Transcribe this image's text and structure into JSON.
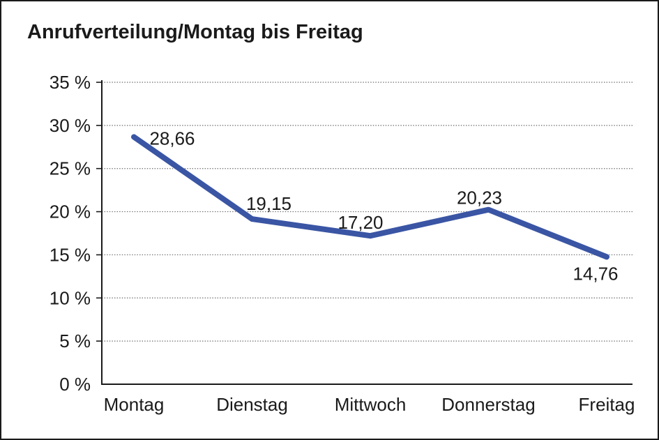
{
  "window": {
    "background": "#ffffff",
    "border_color": "#1a1a1a"
  },
  "chart_data": {
    "type": "line",
    "title": "Anrufverteilung/Montag bis Freitag",
    "categories": [
      "Montag",
      "Dienstag",
      "Mittwoch",
      "Donnerstag",
      "Freitag"
    ],
    "values": [
      28.66,
      19.15,
      17.2,
      20.23,
      14.76
    ],
    "data_labels": [
      "28,66",
      "19,15",
      "17,20",
      "20,23",
      "14,76"
    ],
    "y_tick_labels": [
      "35 %",
      "30 %",
      "25 %",
      "20 %",
      "15 %",
      "10 %",
      "5 %",
      "0 %"
    ],
    "y_tick_values": [
      35,
      30,
      25,
      20,
      15,
      10,
      5,
      0
    ],
    "xlabel": "",
    "ylabel": "",
    "ylim": [
      0,
      35
    ],
    "y_tick_step": 5,
    "grid": "horizontal-dotted",
    "legend": "none",
    "colors": {
      "line": "#3A55A4",
      "axis": "#1a1a1a",
      "gridline": "#666666",
      "text": "#1a1a1a"
    },
    "line_width": 8
  }
}
